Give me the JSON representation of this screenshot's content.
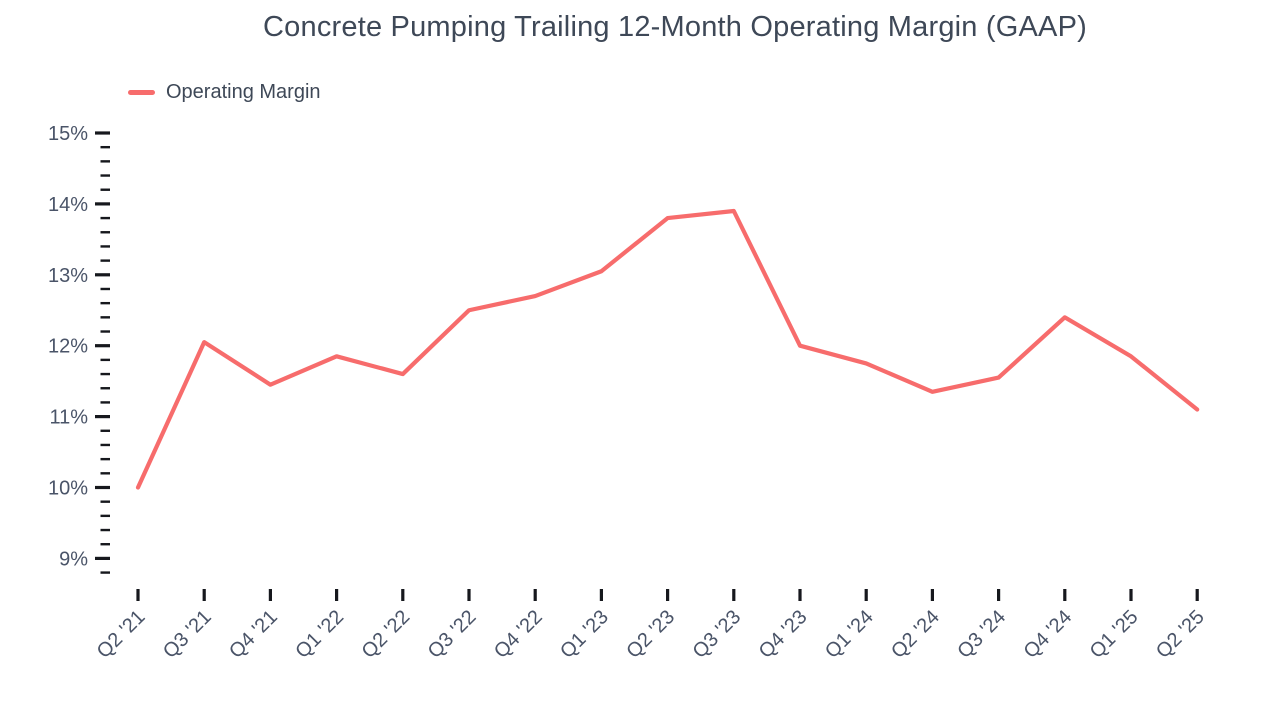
{
  "title": "Concrete Pumping Trailing 12-Month Operating Margin (GAAP)",
  "legend": [
    {
      "label": "Operating Margin"
    }
  ],
  "colors": {
    "line": "#f76c6c",
    "title_text": "#3e4857",
    "axis_label": "#4a5468",
    "tick_mark": "#16181d",
    "background": "#ffffff"
  },
  "chart_data": {
    "type": "line",
    "title": "Concrete Pumping Trailing 12-Month Operating Margin (GAAP)",
    "x": [
      "Q2 '21",
      "Q3 '21",
      "Q4 '21",
      "Q1 '22",
      "Q2 '22",
      "Q3 '22",
      "Q4 '22",
      "Q1 '23",
      "Q2 '23",
      "Q3 '23",
      "Q4 '23",
      "Q1 '24",
      "Q2 '24",
      "Q3 '24",
      "Q4 '24",
      "Q1 '25",
      "Q2 '25"
    ],
    "series": [
      {
        "name": "Operating Margin",
        "values": [
          10.0,
          12.05,
          11.45,
          11.85,
          11.6,
          12.5,
          12.7,
          13.05,
          13.8,
          13.9,
          12.0,
          11.75,
          11.35,
          11.55,
          12.4,
          11.85,
          11.1
        ]
      }
    ],
    "xlabel": "",
    "ylabel": "",
    "ytick_format": "percent",
    "yticks_major": [
      9,
      10,
      11,
      12,
      13,
      14,
      15
    ],
    "ytick_minor_step": 0.2,
    "ylim": [
      8.8,
      15.0
    ],
    "grid": false,
    "legend_position": "top-left"
  }
}
